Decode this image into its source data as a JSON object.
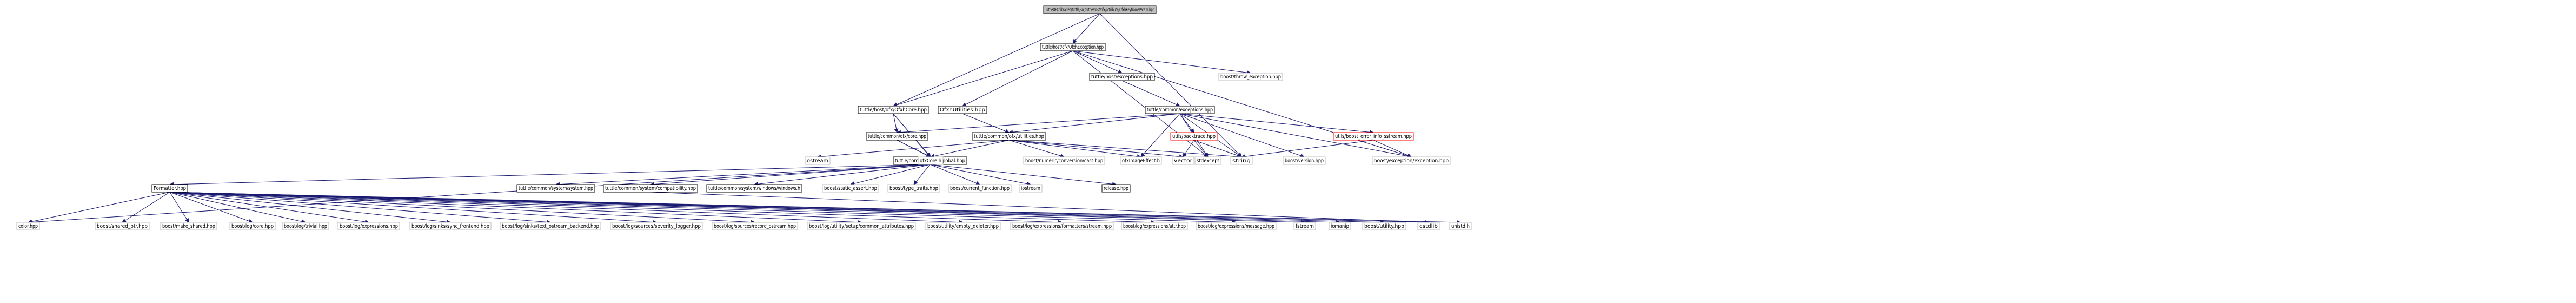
{
  "graph": {
    "nodes": [
      {
        "id": "root",
        "label": "TuttleOFX/libraries/tuttle/src/tuttle/host/ofx/attribute/OfxhKeyframeParam.hpp",
        "style": "root"
      },
      {
        "id": "ofxhexc",
        "label": "tuttle/host/ofx/OfxhException.hpp",
        "style": "doc"
      },
      {
        "id": "ofxhcore",
        "label": "tuttle/host/ofx/OfxhCore.hpp",
        "style": "doc"
      },
      {
        "id": "hostexc",
        "label": "tuttle/host/exceptions.hpp",
        "style": "doc"
      },
      {
        "id": "throwexc",
        "label": "boost/throw_exception.hpp",
        "style": "ext"
      },
      {
        "id": "ofxhutil",
        "label": "OfxhUtilities.hpp",
        "style": "doc"
      },
      {
        "id": "commonexc",
        "label": "tuttle/common/exceptions.hpp",
        "style": "doc"
      },
      {
        "id": "ofxcore",
        "label": "tuttle/common/ofx/core.hpp",
        "style": "doc"
      },
      {
        "id": "ofxutil",
        "label": "tuttle/common/ofx/utilities.hpp",
        "style": "doc"
      },
      {
        "id": "backtrace",
        "label": "utils/backtrace.hpp",
        "style": "red"
      },
      {
        "id": "boosterrinfo",
        "label": "utils/boost_error_info_sstream.hpp",
        "style": "red"
      },
      {
        "id": "ostream",
        "label": "ostream",
        "style": "ext"
      },
      {
        "id": "global",
        "label": "tuttle/common/utils/global.hpp",
        "style": "doc"
      },
      {
        "id": "ofxcoreh",
        "label": "ofxCore.h",
        "style": "ext"
      },
      {
        "id": "lexcast",
        "label": "boost/numeric/conversion/cast.hpp",
        "style": "ext"
      },
      {
        "id": "ofximage",
        "label": "ofxImageEffect.h",
        "style": "ext"
      },
      {
        "id": "vector",
        "label": "vector",
        "style": "ext"
      },
      {
        "id": "stdexcept",
        "label": "stdexcept",
        "style": "ext"
      },
      {
        "id": "string",
        "label": "string",
        "style": "ext"
      },
      {
        "id": "bversion",
        "label": "boost/version.hpp",
        "style": "ext"
      },
      {
        "id": "bexception",
        "label": "boost/exception/exception.hpp",
        "style": "ext"
      },
      {
        "id": "formatter",
        "label": "Formatter.hpp",
        "style": "doc"
      },
      {
        "id": "syssystem",
        "label": "tuttle/common/system/system.hpp",
        "style": "doc"
      },
      {
        "id": "syscompat",
        "label": "tuttle/common/system/compatibility.hpp",
        "style": "doc"
      },
      {
        "id": "syswindows",
        "label": "tuttle/common/system/windows/windows.h",
        "style": "doc"
      },
      {
        "id": "staticassert",
        "label": "boost/static_assert.hpp",
        "style": "ext"
      },
      {
        "id": "typetraits",
        "label": "boost/type_traits.hpp",
        "style": "ext"
      },
      {
        "id": "curfunc",
        "label": "boost/current_function.hpp",
        "style": "ext"
      },
      {
        "id": "iostream",
        "label": "iostream",
        "style": "ext"
      },
      {
        "id": "release",
        "label": "release.hpp",
        "style": "doc"
      },
      {
        "id": "color",
        "label": "color.hpp",
        "style": "ext"
      },
      {
        "id": "sharedptr",
        "label": "boost/shared_ptr.hpp",
        "style": "ext"
      },
      {
        "id": "makeshared",
        "label": "boost/make_shared.hpp",
        "style": "ext"
      },
      {
        "id": "logcore",
        "label": "boost/log/core.hpp",
        "style": "ext"
      },
      {
        "id": "logtrivial",
        "label": "boost/log/trivial.hpp",
        "style": "ext"
      },
      {
        "id": "logexpr",
        "label": "boost/log/expressions.hpp",
        "style": "ext"
      },
      {
        "id": "logsyncfront",
        "label": "boost/log/sinks/sync_frontend.hpp",
        "style": "ext"
      },
      {
        "id": "logtextback",
        "label": "boost/log/sinks/text_ostream_backend.hpp",
        "style": "ext"
      },
      {
        "id": "logseverity",
        "label": "boost/log/sources/severity_logger.hpp",
        "style": "ext"
      },
      {
        "id": "logrecord",
        "label": "boost/log/sources/record_ostream.hpp",
        "style": "ext"
      },
      {
        "id": "logcommonattr",
        "label": "boost/log/utility/setup/common_attributes.hpp",
        "style": "ext"
      },
      {
        "id": "emptydeleter",
        "label": "boost/utility/empty_deleter.hpp",
        "style": "ext"
      },
      {
        "id": "logformatstream",
        "label": "boost/log/expressions/formatters/stream.hpp",
        "style": "ext"
      },
      {
        "id": "logattr",
        "label": "boost/log/expressions/attr.hpp",
        "style": "ext"
      },
      {
        "id": "logmessage",
        "label": "boost/log/expressions/message.hpp",
        "style": "ext"
      },
      {
        "id": "fstream",
        "label": "fstream",
        "style": "ext"
      },
      {
        "id": "iomanip",
        "label": "iomanip",
        "style": "ext"
      },
      {
        "id": "butility",
        "label": "boost/utility.hpp",
        "style": "ext"
      },
      {
        "id": "cstdlib",
        "label": "cstdlib",
        "style": "ext"
      },
      {
        "id": "unistd",
        "label": "unistd.h",
        "style": "ext"
      }
    ],
    "edges": [
      [
        "root",
        "ofxhexc"
      ],
      [
        "root",
        "ofxhcore"
      ],
      [
        "root",
        "string"
      ],
      [
        "ofxhexc",
        "ofxhcore"
      ],
      [
        "ofxhexc",
        "hostexc"
      ],
      [
        "ofxhexc",
        "throwexc"
      ],
      [
        "ofxhexc",
        "ofxhutil"
      ],
      [
        "ofxhexc",
        "stdexcept"
      ],
      [
        "ofxhexc",
        "bexception"
      ],
      [
        "ofxhcore",
        "ofxcore"
      ],
      [
        "ofxhcore",
        "global"
      ],
      [
        "ofxhcore",
        "ofxcoreh"
      ],
      [
        "hostexc",
        "commonexc"
      ],
      [
        "ofxhutil",
        "ofxutil"
      ],
      [
        "commonexc",
        "ofxcore"
      ],
      [
        "commonexc",
        "ofxutil"
      ],
      [
        "commonexc",
        "backtrace"
      ],
      [
        "commonexc",
        "boosterrinfo"
      ],
      [
        "commonexc",
        "ofximage"
      ],
      [
        "commonexc",
        "stdexcept"
      ],
      [
        "commonexc",
        "string"
      ],
      [
        "commonexc",
        "bversion"
      ],
      [
        "commonexc",
        "bexception"
      ],
      [
        "ofxcore",
        "ofxcoreh"
      ],
      [
        "ofxcore",
        "global"
      ],
      [
        "ofxutil",
        "ofxcoreh"
      ],
      [
        "ofxutil",
        "lexcast"
      ],
      [
        "ofxutil",
        "ofximage"
      ],
      [
        "ofxutil",
        "vector"
      ],
      [
        "ofxutil",
        "string"
      ],
      [
        "ofxutil",
        "ostream"
      ],
      [
        "backtrace",
        "vector"
      ],
      [
        "backtrace",
        "stdexcept"
      ],
      [
        "backtrace",
        "string"
      ],
      [
        "boosterrinfo",
        "string"
      ],
      [
        "boosterrinfo",
        "bexception"
      ],
      [
        "global",
        "formatter"
      ],
      [
        "global",
        "syssystem"
      ],
      [
        "global",
        "syscompat"
      ],
      [
        "global",
        "syswindows"
      ],
      [
        "global",
        "staticassert"
      ],
      [
        "global",
        "typetraits"
      ],
      [
        "global",
        "curfunc"
      ],
      [
        "global",
        "iostream"
      ],
      [
        "global",
        "release"
      ],
      [
        "global",
        "color"
      ],
      [
        "syscompat",
        "cstdlib"
      ],
      [
        "formatter",
        "color"
      ],
      [
        "formatter",
        "sharedptr"
      ],
      [
        "formatter",
        "makeshared"
      ],
      [
        "formatter",
        "logcore"
      ],
      [
        "formatter",
        "logtrivial"
      ],
      [
        "formatter",
        "logexpr"
      ],
      [
        "formatter",
        "logsyncfront"
      ],
      [
        "formatter",
        "logtextback"
      ],
      [
        "formatter",
        "logseverity"
      ],
      [
        "formatter",
        "logrecord"
      ],
      [
        "formatter",
        "logcommonattr"
      ],
      [
        "formatter",
        "emptydeleter"
      ],
      [
        "formatter",
        "logformatstream"
      ],
      [
        "formatter",
        "logattr"
      ],
      [
        "formatter",
        "logmessage"
      ],
      [
        "formatter",
        "fstream"
      ],
      [
        "formatter",
        "iomanip"
      ],
      [
        "formatter",
        "butility"
      ],
      [
        "formatter",
        "cstdlib"
      ],
      [
        "formatter",
        "unistd"
      ]
    ],
    "colors": {
      "edge": "#191970",
      "root_fill": "#bfbfbf",
      "doc_border": "#000000",
      "ext_border": "#bfbfbf",
      "red_border": "#ff0000",
      "text": "#000000"
    }
  }
}
